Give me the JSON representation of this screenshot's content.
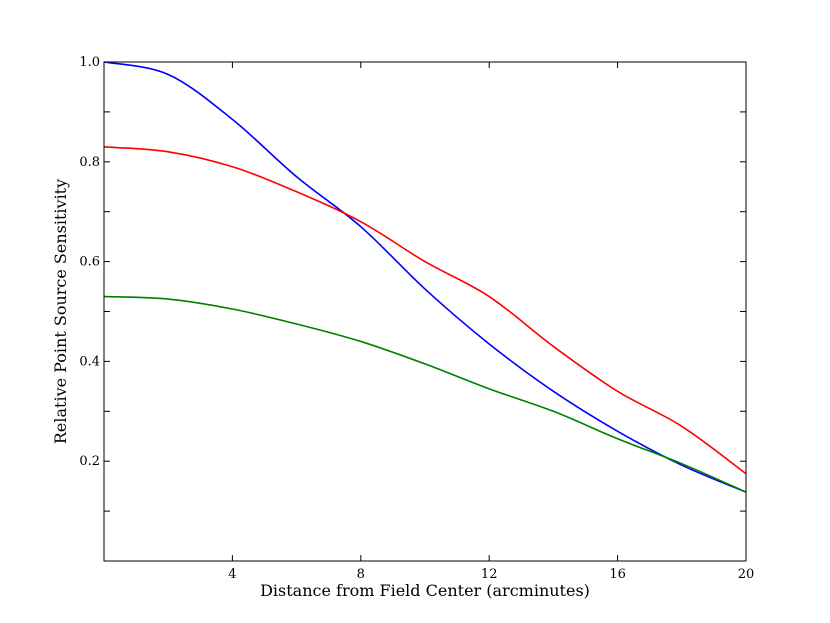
{
  "chart_data": {
    "type": "line",
    "title": "",
    "xlabel": "Distance from Field Center (arcminutes)",
    "ylabel": "Relative Point Source Sensitivity",
    "xlim": [
      0,
      20
    ],
    "ylim": [
      0,
      1.0
    ],
    "x_ticks": [
      4,
      8,
      12,
      16,
      20
    ],
    "x_tick_labels": [
      "4",
      "8",
      "12",
      "16",
      "20"
    ],
    "y_ticks": [
      0.2,
      0.4,
      0.6,
      0.8,
      1.0
    ],
    "y_tick_labels": [
      "0.2",
      "0.4",
      "0.6",
      "0.8",
      "1.0"
    ],
    "grid": false,
    "legend": "none",
    "x": [
      0,
      2,
      4,
      6,
      8,
      10,
      12,
      14,
      16,
      18,
      20
    ],
    "series": [
      {
        "color": "#0000ff",
        "values": [
          1.0,
          0.975,
          0.885,
          0.77,
          0.67,
          0.545,
          0.435,
          0.34,
          0.26,
          0.192,
          0.138
        ]
      },
      {
        "color": "#ff0000",
        "values": [
          0.83,
          0.82,
          0.79,
          0.74,
          0.68,
          0.6,
          0.53,
          0.43,
          0.34,
          0.27,
          0.175
        ]
      },
      {
        "color": "#008000",
        "values": [
          0.53,
          0.525,
          0.505,
          0.475,
          0.44,
          0.395,
          0.345,
          0.3,
          0.245,
          0.195,
          0.138
        ]
      }
    ]
  }
}
